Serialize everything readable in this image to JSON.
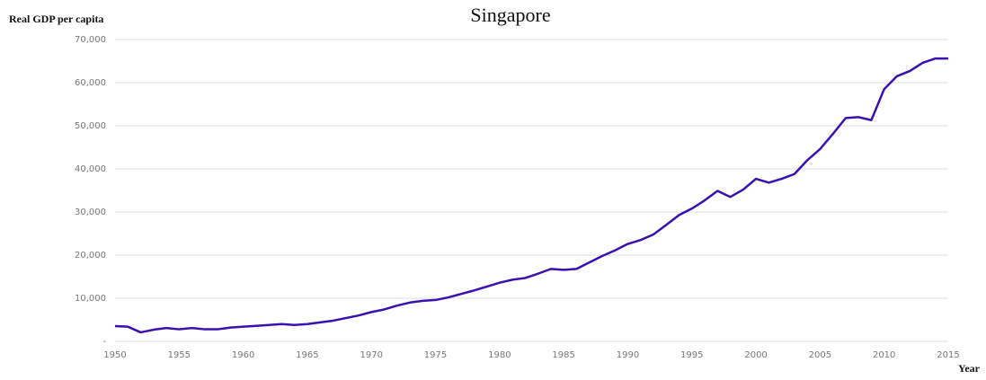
{
  "chart_data": {
    "type": "line",
    "title": "Singapore",
    "y_label": "Real GDP per capita",
    "x_label": "Year",
    "x": [
      1950,
      1951,
      1952,
      1953,
      1954,
      1955,
      1956,
      1957,
      1958,
      1959,
      1960,
      1961,
      1962,
      1963,
      1964,
      1965,
      1966,
      1967,
      1968,
      1969,
      1970,
      1971,
      1972,
      1973,
      1974,
      1975,
      1976,
      1977,
      1978,
      1979,
      1980,
      1981,
      1982,
      1983,
      1984,
      1985,
      1986,
      1987,
      1988,
      1989,
      1990,
      1991,
      1992,
      1993,
      1994,
      1995,
      1996,
      1997,
      1998,
      1999,
      2000,
      2001,
      2002,
      2003,
      2004,
      2005,
      2006,
      2007,
      2008,
      2009,
      2010,
      2011,
      2012,
      2013,
      2014,
      2015
    ],
    "series": [
      {
        "name": "Singapore",
        "color": "#3a10b0",
        "values": [
          3540,
          3400,
          2100,
          2700,
          3100,
          2800,
          3100,
          2800,
          2800,
          3200,
          3400,
          3600,
          3800,
          4000,
          3800,
          4000,
          4400,
          4800,
          5400,
          6000,
          6800,
          7400,
          8300,
          9000,
          9400,
          9600,
          10200,
          11000,
          11800,
          12700,
          13600,
          14300,
          14700,
          15700,
          16800,
          16600,
          16800,
          18300,
          19800,
          21100,
          22600,
          23500,
          24800,
          27000,
          29300,
          30800,
          32700,
          34900,
          33500,
          35200,
          37700,
          36800,
          37700,
          38800,
          42000,
          44600,
          48100,
          51800,
          52000,
          51300,
          58500,
          61500,
          62700,
          64600,
          65600,
          65600
        ]
      }
    ],
    "xlim": [
      1950,
      2015
    ],
    "xticks": [
      1950,
      1955,
      1960,
      1965,
      1970,
      1975,
      1980,
      1985,
      1990,
      1995,
      2000,
      2005,
      2010,
      2015
    ],
    "ylim": [
      0,
      70000
    ],
    "yticks": [
      {
        "value": 0,
        "label": "-"
      },
      {
        "value": 10000,
        "label": "10,000"
      },
      {
        "value": 20000,
        "label": "20,000"
      },
      {
        "value": 30000,
        "label": "30,000"
      },
      {
        "value": 40000,
        "label": "40,000"
      },
      {
        "value": 50000,
        "label": "50,000"
      },
      {
        "value": 60000,
        "label": "60,000"
      },
      {
        "value": 70000,
        "label": "70,000"
      }
    ],
    "grid": true
  }
}
